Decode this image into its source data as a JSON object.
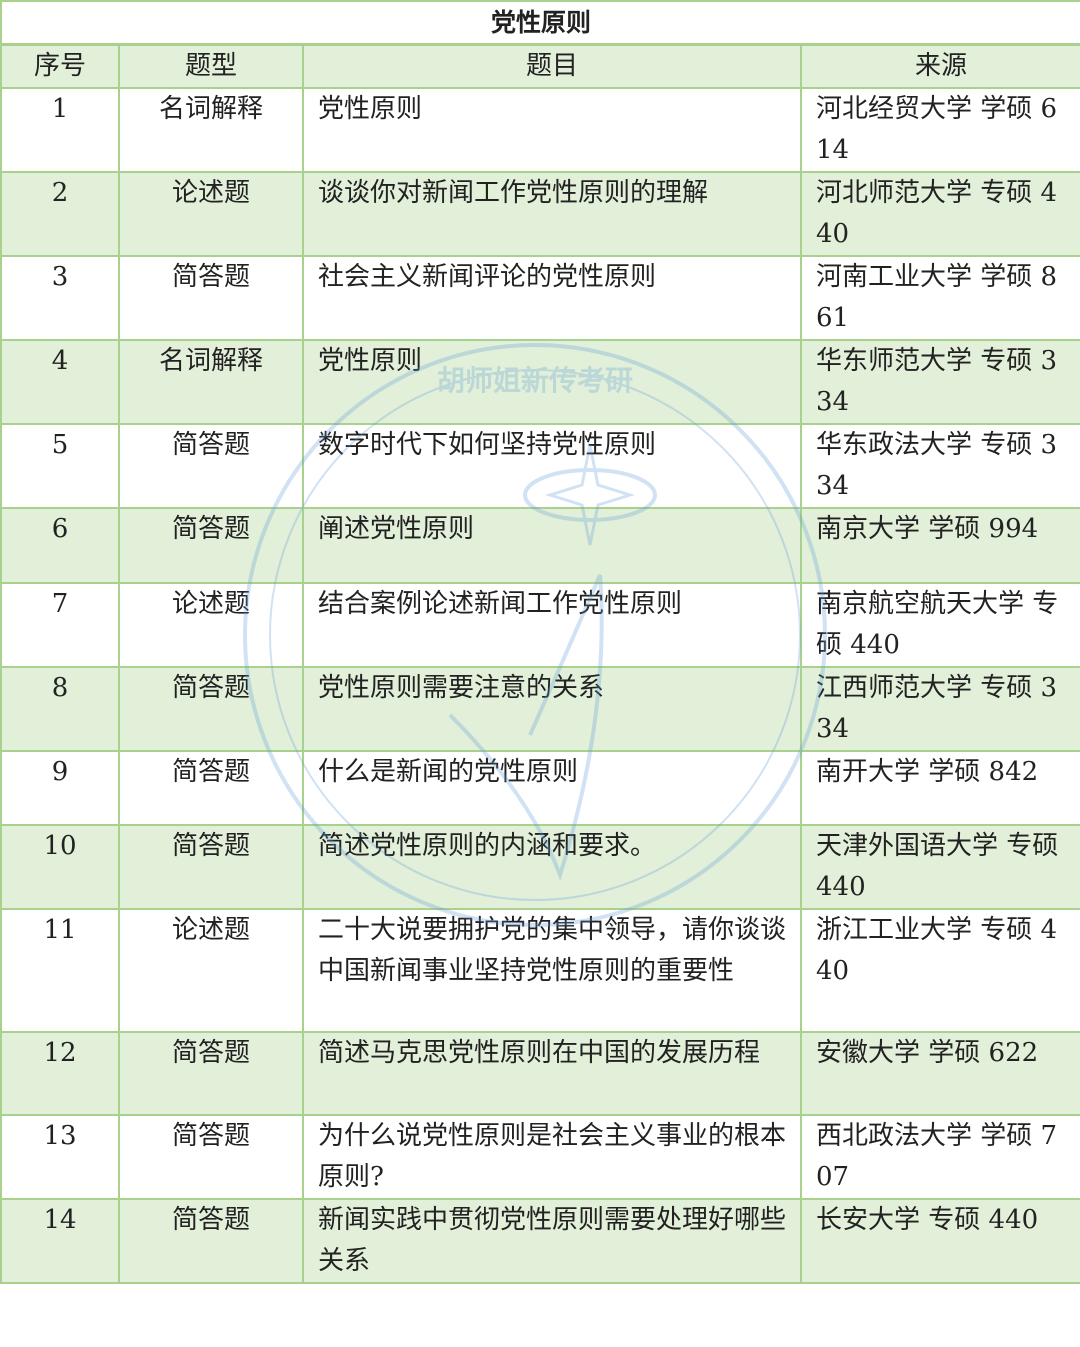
{
  "title": "党性原则",
  "headers": [
    "序号",
    "题型",
    "题目",
    "来源"
  ],
  "rows": [
    [
      "1",
      "名词解释",
      "党性原则",
      "河北经贸大学 学硕 614"
    ],
    [
      "2",
      "论述题",
      "谈谈你对新闻工作党性原则的理解",
      "河北师范大学 专硕 440"
    ],
    [
      "3",
      "简答题",
      "社会主义新闻评论的党性原则",
      "河南工业大学 学硕 861"
    ],
    [
      "4",
      "名词解释",
      "党性原则",
      "华东师范大学 专硕 334"
    ],
    [
      "5",
      "简答题",
      "数字时代下如何坚持党性原则",
      "华东政法大学 专硕 334"
    ],
    [
      "6",
      "简答题",
      "阐述党性原则",
      "南京大学 学硕 994"
    ],
    [
      "7",
      "论述题",
      "结合案例论述新闻工作党性原则",
      "南京航空航天大学 专硕 440"
    ],
    [
      "8",
      "简答题",
      "党性原则需要注意的关系",
      "江西师范大学 专硕 334"
    ],
    [
      "9",
      "简答题",
      "什么是新闻的党性原则",
      "南开大学 学硕 842"
    ],
    [
      "10",
      "简答题",
      "简述党性原则的内涵和要求。",
      "天津外国语大学 专硕 440"
    ],
    [
      "11",
      "论述题",
      "二十大说要拥护党的集中领导，请你谈谈中国新闻事业坚持党性原则的重要性",
      "浙江工业大学 专硕 440"
    ],
    [
      "12",
      "简答题",
      "简述马克思党性原则在中国的发展历程",
      "安徽大学 学硕 622"
    ],
    [
      "13",
      "简答题",
      "为什么说党性原则是社会主义事业的根本原则?",
      "西北政法大学 学硕 707"
    ],
    [
      "14",
      "简答题",
      "新闻实践中贯彻党性原则需要处理好哪些关系",
      "长安大学 专硕 440"
    ]
  ],
  "watermark": "胡师姐新传考研",
  "colors": {
    "border": "#a9d18e",
    "band": "#e2efd9",
    "watermark": "#5b9bd5"
  }
}
